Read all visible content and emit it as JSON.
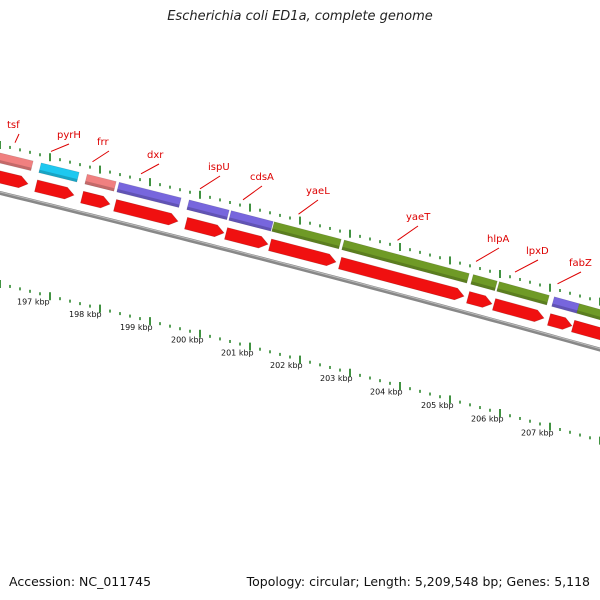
{
  "title": "Escherichia coli ED1a, complete genome",
  "footer": {
    "accession": "Accession: NC_011745",
    "summary": "Topology: circular; Length: 5,209,548 bp; Genes: 5,118"
  },
  "colors": {
    "cds_forward": "#f01010",
    "tick_green": "#117711",
    "backbone": "#888888",
    "label_red": "#dd0000",
    "category_pink": "#f08080",
    "category_cyan": "#1ec8f0",
    "category_purple": "#7766dd",
    "category_olive": "#6f9a26"
  },
  "scale_labels": [
    "197 kbp",
    "198 kbp",
    "199 kbp",
    "200 kbp",
    "201 kbp",
    "202 kbp",
    "203 kbp",
    "204 kbp",
    "205 kbp",
    "206 kbp",
    "207 kbp"
  ],
  "genes": [
    {
      "name": "tsf",
      "category": "pink"
    },
    {
      "name": "pyrH",
      "category": "cyan"
    },
    {
      "name": "frr",
      "category": "pink"
    },
    {
      "name": "dxr",
      "category": "purple"
    },
    {
      "name": "ispU",
      "category": "purple"
    },
    {
      "name": "cdsA",
      "category": "purple"
    },
    {
      "name": "yaeL",
      "category": "olive"
    },
    {
      "name": "yaeT",
      "category": "olive"
    },
    {
      "name": "hlpA",
      "category": "olive"
    },
    {
      "name": "lpxD",
      "category": "olive"
    },
    {
      "name": "fabZ",
      "category": "purple"
    }
  ]
}
